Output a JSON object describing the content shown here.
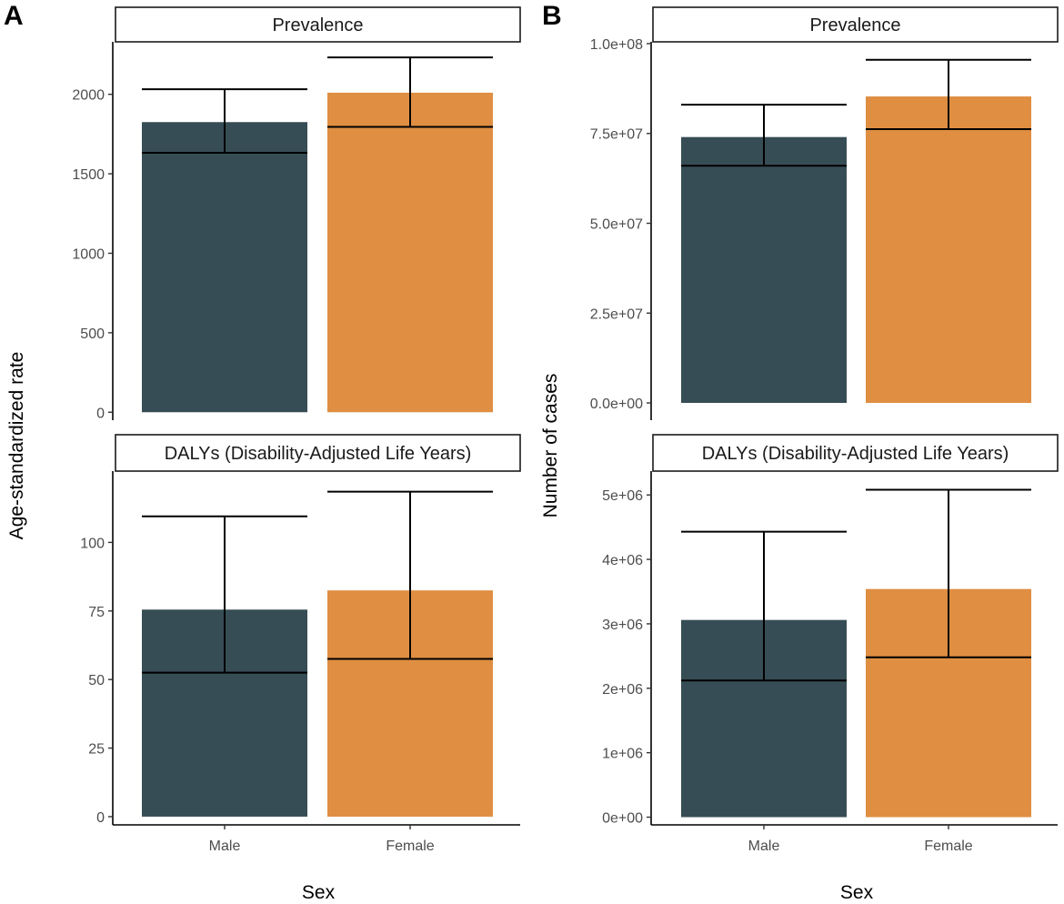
{
  "figure": {
    "sexes": [
      "Male",
      "Female"
    ],
    "colors": {
      "Male": "#374d55",
      "Female": "#df8e42"
    },
    "xlabel": "Sex"
  },
  "chart_data": [
    {
      "type": "bar",
      "panel": "A",
      "ylabel": "Age-standardized rate",
      "subplots": [
        {
          "title": "Prevalence",
          "categories": [
            "Male",
            "Female"
          ],
          "values": [
            1825,
            2010
          ],
          "lower": [
            1632,
            1795
          ],
          "upper": [
            2032,
            2232
          ],
          "ylim": [
            -50,
            2330
          ],
          "yticks": [
            0,
            500,
            1000,
            1500,
            2000
          ],
          "ytick_labels": [
            "0",
            "500",
            "1000",
            "1500",
            "2000"
          ]
        },
        {
          "title": "DALYs (Disability-Adjusted Life Years)",
          "categories": [
            "Male",
            "Female"
          ],
          "values": [
            75.5,
            82.5
          ],
          "lower": [
            52.5,
            57.5
          ],
          "upper": [
            109.5,
            118.5
          ],
          "ylim": [
            -3,
            126
          ],
          "yticks": [
            0,
            25,
            50,
            75,
            100
          ],
          "ytick_labels": [
            "0",
            "25",
            "50",
            "75",
            "100"
          ]
        }
      ]
    },
    {
      "type": "bar",
      "panel": "B",
      "ylabel": "Number of cases",
      "subplots": [
        {
          "title": "Prevalence",
          "categories": [
            "Male",
            "Female"
          ],
          "values": [
            74000000,
            85300000
          ],
          "lower": [
            66000000,
            76200000
          ],
          "upper": [
            83000000,
            95500000
          ],
          "ylim": [
            -4800000,
            100500000
          ],
          "yticks": [
            0,
            25000000,
            50000000,
            75000000,
            100000000
          ],
          "ytick_labels": [
            "0.0e+00",
            "2.5e+07",
            "5.0e+07",
            "7.5e+07",
            "1.0e+08"
          ]
        },
        {
          "title": "DALYs (Disability-Adjusted Life Years)",
          "categories": [
            "Male",
            "Female"
          ],
          "values": [
            3060000,
            3540000
          ],
          "lower": [
            2120000,
            2480000
          ],
          "upper": [
            4430000,
            5080000
          ],
          "ylim": [
            -120000,
            5370000
          ],
          "yticks": [
            0,
            1000000,
            2000000,
            3000000,
            4000000,
            5000000
          ],
          "ytick_labels": [
            "0e+00",
            "1e+06",
            "2e+06",
            "3e+06",
            "4e+06",
            "5e+06"
          ]
        }
      ]
    }
  ]
}
